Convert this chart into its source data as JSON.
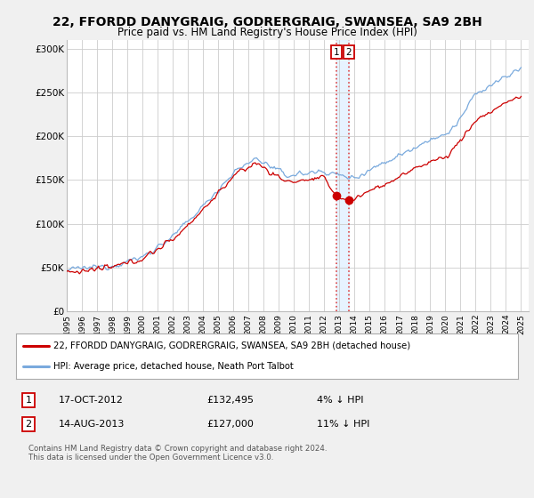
{
  "title": "22, FFORDD DANYGRAIG, GODRERGRAIG, SWANSEA, SA9 2BH",
  "subtitle": "Price paid vs. HM Land Registry's House Price Index (HPI)",
  "title_fontsize": 10,
  "subtitle_fontsize": 8.5,
  "legend_line1": "22, FFORDD DANYGRAIG, GODRERGRAIG, SWANSEA, SA9 2BH (detached house)",
  "legend_line2": "HPI: Average price, detached house, Neath Port Talbot",
  "annotation1_date": "17-OCT-2012",
  "annotation1_price": "£132,495",
  "annotation1_hpi": "4% ↓ HPI",
  "annotation2_date": "14-AUG-2013",
  "annotation2_price": "£127,000",
  "annotation2_hpi": "11% ↓ HPI",
  "footnote": "Contains HM Land Registry data © Crown copyright and database right 2024.\nThis data is licensed under the Open Government Licence v3.0.",
  "xmin": 1995.0,
  "xmax": 2025.5,
  "ymin": 0,
  "ymax": 310000,
  "yticks": [
    0,
    50000,
    100000,
    150000,
    200000,
    250000,
    300000
  ],
  "ytick_labels": [
    "£0",
    "£50K",
    "£100K",
    "£150K",
    "£200K",
    "£250K",
    "£300K"
  ],
  "sale1_x": 2012.79,
  "sale1_y": 132495,
  "sale2_x": 2013.62,
  "sale2_y": 127000,
  "background_color": "#f0f0f0",
  "plot_bg_color": "#ffffff",
  "grid_color": "#cccccc",
  "red_color": "#cc0000",
  "blue_color": "#7aaadd",
  "vline_color": "#dd4444",
  "band_color": "#ddeeff"
}
